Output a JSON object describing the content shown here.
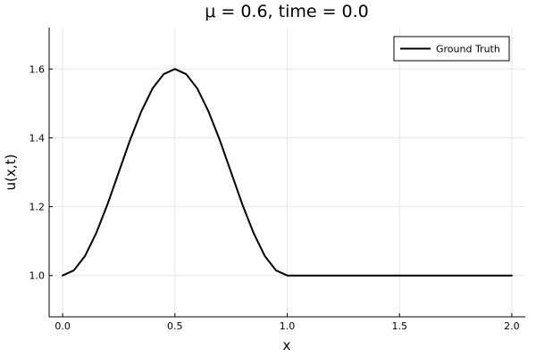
{
  "chart_data": {
    "type": "line",
    "title": "μ = 0.6, time = 0.0",
    "xlabel": "x",
    "ylabel": "u(x,t)",
    "xlim": [
      -0.06,
      2.06
    ],
    "ylim": [
      0.88,
      1.72
    ],
    "xticks": [
      0.0,
      0.5,
      1.0,
      1.5,
      2.0
    ],
    "xtick_labels": [
      "0.0",
      "0.5",
      "1.0",
      "1.5",
      "2.0"
    ],
    "yticks": [
      1.0,
      1.2,
      1.4,
      1.6
    ],
    "ytick_labels": [
      "1.0",
      "1.2",
      "1.4",
      "1.6"
    ],
    "grid": true,
    "legend": {
      "position": "top-right"
    },
    "series": [
      {
        "name": "Ground Truth",
        "color": "#000000",
        "x": [
          0.0,
          0.05,
          0.1,
          0.15,
          0.2,
          0.25,
          0.3,
          0.35,
          0.4,
          0.45,
          0.5,
          0.55,
          0.6,
          0.65,
          0.7,
          0.75,
          0.8,
          0.85,
          0.9,
          0.95,
          1.0,
          1.25,
          1.5,
          1.75,
          2.0
        ],
        "y": [
          1.0,
          1.015,
          1.057,
          1.124,
          1.207,
          1.3,
          1.393,
          1.476,
          1.543,
          1.585,
          1.6,
          1.585,
          1.543,
          1.476,
          1.393,
          1.3,
          1.207,
          1.124,
          1.057,
          1.015,
          1.0,
          1.0,
          1.0,
          1.0,
          1.0
        ]
      }
    ]
  }
}
